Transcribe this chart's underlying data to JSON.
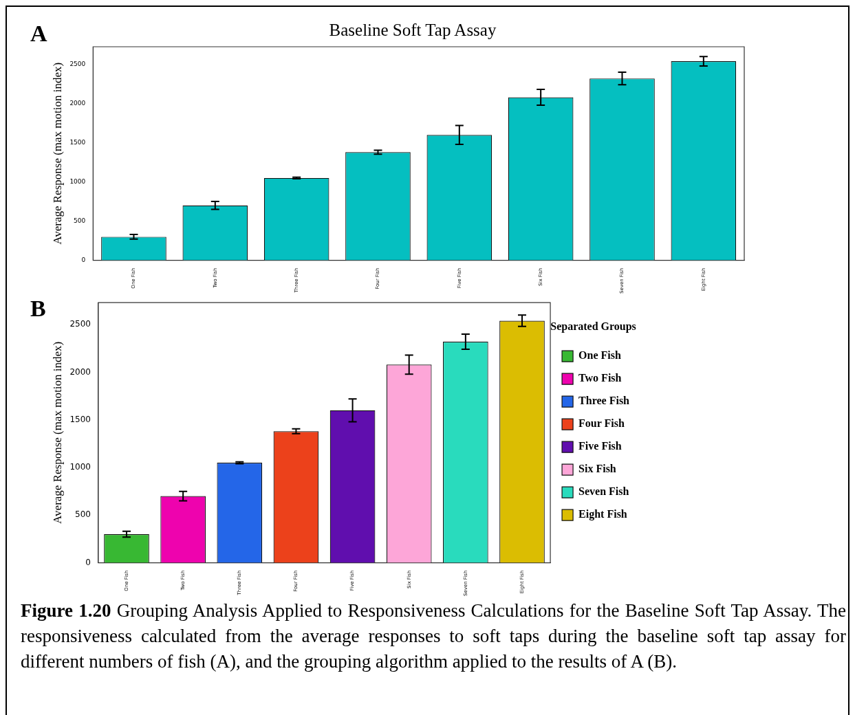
{
  "chart_data": [
    {
      "type": "bar",
      "title": "Baseline Soft Tap Assay",
      "ylabel": "Average Response (max motion index)",
      "annotations": [
        "A"
      ],
      "categories": [
        "One Fish",
        "Two Fish",
        "Three Fish",
        "Four Fish",
        "Five Fish",
        "Six Fish",
        "Seven Fish",
        "Eight Fish"
      ],
      "values": [
        300,
        700,
        1050,
        1380,
        1600,
        2080,
        2320,
        2540
      ],
      "errors": [
        30,
        50,
        10,
        25,
        120,
        100,
        80,
        60
      ],
      "color": "#05bfc0",
      "ylim": [
        0,
        2725
      ],
      "yticks": [
        0,
        500,
        1000,
        1500,
        2000,
        2500
      ]
    },
    {
      "type": "bar",
      "ylabel": "Average Response (max motion index)",
      "legend": "right",
      "legend_title": "Separated Groups",
      "annotations": [
        "B",
        "Figure 1.20",
        "Grouping Analysis Applied to Responsiveness Calculations for the Baseline Soft Tap Assay. The responsiveness calculated from the average responses to soft taps during the baseline soft tap assay for different numbers of fish (A), and the grouping algorithm applied to the results of A (B)."
      ],
      "categories": [
        "One Fish",
        "Two Fish",
        "Three Fish",
        "Four Fish",
        "Five Fish",
        "Six Fish",
        "Seven Fish",
        "Eight Fish"
      ],
      "series": [
        {
          "name": "One Fish",
          "color": "#38b833",
          "values": [
            300,
            null,
            null,
            null,
            null,
            null,
            null,
            null
          ],
          "errors": [
            30,
            null,
            null,
            null,
            null,
            null,
            null,
            null
          ]
        },
        {
          "name": "Two Fish",
          "color": "#ee03ae",
          "values": [
            null,
            700,
            null,
            null,
            null,
            null,
            null,
            null
          ],
          "errors": [
            null,
            50,
            null,
            null,
            null,
            null,
            null,
            null
          ]
        },
        {
          "name": "Three Fish",
          "color": "#2466e8",
          "values": [
            null,
            null,
            1050,
            null,
            null,
            null,
            null,
            null
          ],
          "errors": [
            null,
            null,
            10,
            null,
            null,
            null,
            null,
            null
          ]
        },
        {
          "name": "Four Fish",
          "color": "#ec411b",
          "values": [
            null,
            null,
            null,
            1380,
            null,
            null,
            null,
            null
          ],
          "errors": [
            null,
            null,
            null,
            25,
            null,
            null,
            null,
            null
          ]
        },
        {
          "name": "Five Fish",
          "color": "#600eae",
          "values": [
            null,
            null,
            null,
            null,
            1600,
            null,
            null,
            null
          ],
          "errors": [
            null,
            null,
            null,
            null,
            120,
            null,
            null,
            null
          ]
        },
        {
          "name": "Six Fish",
          "color": "#fda6d8",
          "values": [
            null,
            null,
            null,
            null,
            null,
            2080,
            null,
            null
          ],
          "errors": [
            null,
            null,
            null,
            null,
            null,
            100,
            null,
            null
          ]
        },
        {
          "name": "Seven Fish",
          "color": "#29dbbd",
          "values": [
            null,
            null,
            null,
            null,
            null,
            null,
            2320,
            null
          ],
          "errors": [
            null,
            null,
            null,
            null,
            null,
            null,
            80,
            null
          ]
        },
        {
          "name": "Eight Fish",
          "color": "#dbbd02",
          "values": [
            null,
            null,
            null,
            null,
            null,
            null,
            null,
            2540
          ],
          "errors": [
            null,
            null,
            null,
            null,
            null,
            null,
            null,
            60
          ]
        }
      ],
      "ylim": [
        0,
        2730
      ],
      "yticks": [
        0,
        500,
        1000,
        1500,
        2000,
        2500
      ]
    }
  ]
}
